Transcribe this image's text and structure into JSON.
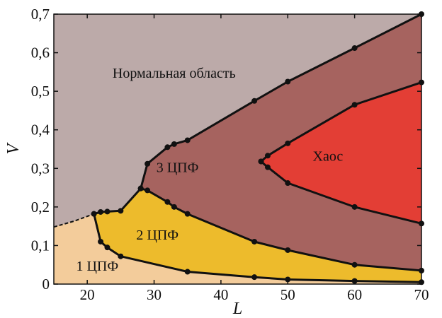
{
  "chart_data": {
    "type": "area",
    "title": "",
    "xlabel": "L",
    "ylabel": "V",
    "xlim": [
      15,
      70
    ],
    "ylim": [
      0,
      0.7
    ],
    "xticks": [
      20,
      30,
      40,
      50,
      60,
      70
    ],
    "yticks": [
      0,
      0.1,
      0.2,
      0.3,
      0.4,
      0.5,
      0.6,
      0.7
    ],
    "xtick_labels": [
      "20",
      "30",
      "40",
      "50",
      "60",
      "70"
    ],
    "ytick_labels": [
      "0",
      "0,1",
      "0,2",
      "0,3",
      "0,4",
      "0,5",
      "0,6",
      "0,7"
    ],
    "grid": false,
    "regions": [
      {
        "label": "Нормальная область",
        "color": "#bcaaa9",
        "label_at": [
          33,
          0.535
        ]
      },
      {
        "label": "3 ЦПФ",
        "color": "#a6635f",
        "label_at": [
          33.5,
          0.29
        ]
      },
      {
        "label": "Хаос",
        "color": "#e33e35",
        "label_at": [
          56,
          0.32
        ]
      },
      {
        "label": "2 ЦПФ",
        "color": "#edbb2c",
        "label_at": [
          30.5,
          0.115
        ]
      },
      {
        "label": "1 ЦПФ",
        "color": "#f3cc9b",
        "label_at": [
          21.5,
          0.035
        ]
      }
    ],
    "boundaries": [
      {
        "name": "upper",
        "x": [
          28,
          29,
          32,
          33,
          35,
          45,
          50,
          60,
          70
        ],
        "y": [
          0.248,
          0.312,
          0.355,
          0.363,
          0.373,
          0.475,
          0.525,
          0.612,
          0.7
        ]
      },
      {
        "name": "left-kink",
        "x": [
          21,
          22,
          23,
          25,
          28
        ],
        "y": [
          0.182,
          0.187,
          0.188,
          0.19,
          0.248
        ]
      },
      {
        "name": "mid",
        "x": [
          28,
          29,
          32,
          33,
          35,
          45,
          50,
          60,
          70
        ],
        "y": [
          0.248,
          0.243,
          0.213,
          0.2,
          0.182,
          0.11,
          0.088,
          0.05,
          0.035
        ]
      },
      {
        "name": "lower",
        "x": [
          21,
          22,
          23,
          25,
          35,
          45,
          50,
          60,
          70
        ],
        "y": [
          0.182,
          0.11,
          0.095,
          0.072,
          0.032,
          0.018,
          0.012,
          0.008,
          0.005
        ]
      },
      {
        "name": "chaos-top",
        "x": [
          46,
          47,
          50,
          60,
          70
        ],
        "y": [
          0.318,
          0.333,
          0.365,
          0.465,
          0.523
        ]
      },
      {
        "name": "chaos-bottom",
        "x": [
          46,
          47,
          50,
          60,
          70
        ],
        "y": [
          0.318,
          0.303,
          0.262,
          0.2,
          0.157
        ]
      },
      {
        "name": "dashed",
        "style": "dashed",
        "x": [
          15,
          18,
          21
        ],
        "y": [
          0.148,
          0.163,
          0.182
        ]
      }
    ]
  }
}
